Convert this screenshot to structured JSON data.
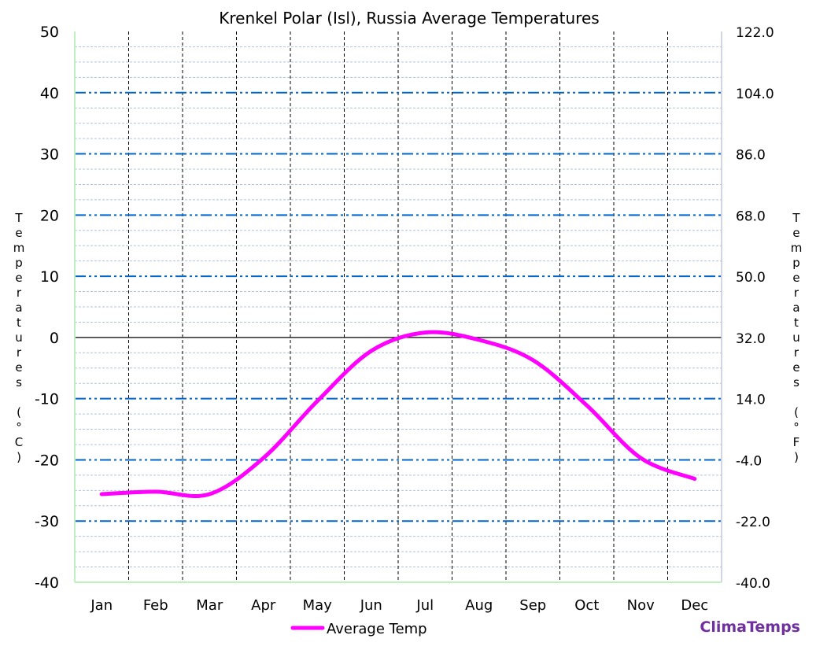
{
  "chart_data": {
    "type": "line",
    "title": "Krenkel Polar (Isl), Russia Average Temperatures",
    "ylabel": "Temperatures (°C)",
    "ylabel_right": "Temperatures (°F)",
    "categories": [
      "Jan",
      "Feb",
      "Mar",
      "Apr",
      "May",
      "Jun",
      "Jul",
      "Aug",
      "Sep",
      "Oct",
      "Nov",
      "Dec"
    ],
    "series": [
      {
        "name": "Average Temp",
        "color": "#ff00ff",
        "values": [
          -25.6,
          -25.2,
          -25.6,
          -19.7,
          -10.4,
          -2.2,
          0.8,
          -0.4,
          -3.7,
          -11.1,
          -19.7,
          -23.1
        ]
      }
    ],
    "ylim": [
      -40,
      50
    ],
    "yticks": [
      50,
      40,
      30,
      20,
      10,
      0,
      -10,
      -20,
      -30,
      -40
    ],
    "yticks_right": [
      "122.0",
      "104.0",
      "86.0",
      "68.0",
      "50.0",
      "32.0",
      "14.0",
      "-4.0",
      "-22.0",
      "-40.0"
    ],
    "grid": true,
    "legend": "bottom-center",
    "colors": {
      "major_grid": "#0066cc",
      "minor_grid": "#b0c4de",
      "axis_left": "#c0f0c0"
    }
  },
  "brand": "ClimaTemps"
}
